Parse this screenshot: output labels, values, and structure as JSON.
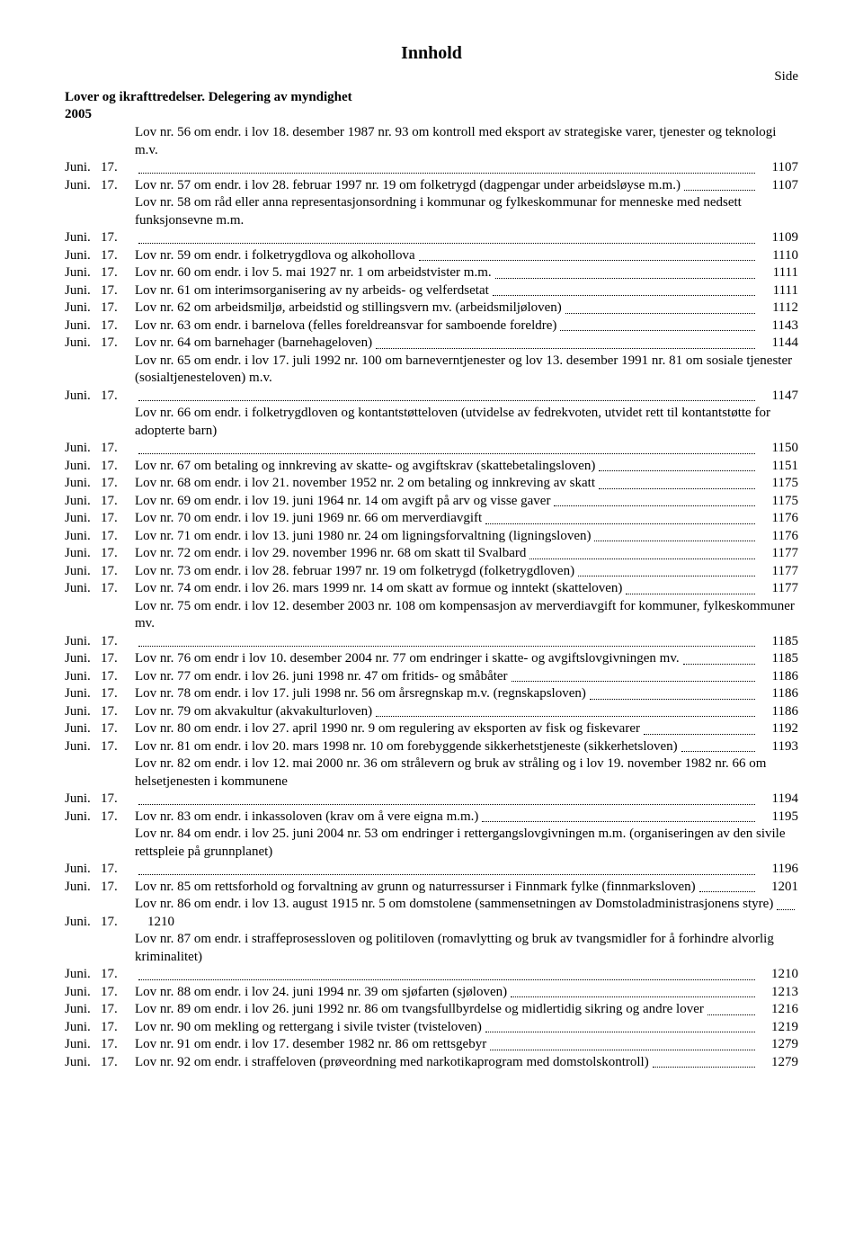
{
  "title": "Innhold",
  "side_label": "Side",
  "section": "Lover og ikrafttredelser. Delegering av myndighet",
  "year": "2005",
  "entries": [
    {
      "month": "Juni.",
      "day": "17.",
      "text": "Lov nr. 56 om endr. i lov 18. desember 1987 nr. 93 om kontroll med eksport av strategiske varer, tjenester og teknologi m.v.",
      "page": "1107"
    },
    {
      "month": "Juni.",
      "day": "17.",
      "text": "Lov nr. 57 om endr. i lov 28. februar 1997 nr. 19 om folketrygd (dagpengar under arbeidsløyse m.m.)",
      "page": "1107"
    },
    {
      "month": "Juni.",
      "day": "17.",
      "text": "Lov nr. 58 om råd eller anna representasjonsordning i kommunar og fylkeskommunar for menneske med nedsett funksjonsevne m.m.",
      "page": "1109"
    },
    {
      "month": "Juni.",
      "day": "17.",
      "text": "Lov nr. 59 om endr. i folketrygdlova og alkohollova",
      "page": "1110"
    },
    {
      "month": "Juni.",
      "day": "17.",
      "text": "Lov nr. 60 om endr. i lov 5. mai 1927 nr. 1 om arbeidstvister m.m.",
      "page": "1111"
    },
    {
      "month": "Juni.",
      "day": "17.",
      "text": "Lov nr. 61 om interimsorganisering av ny arbeids- og velferdsetat",
      "page": "1111"
    },
    {
      "month": "Juni.",
      "day": "17.",
      "text": "Lov nr. 62 om arbeidsmiljø, arbeidstid og stillingsvern mv. (arbeidsmiljøloven)",
      "page": "1112"
    },
    {
      "month": "Juni.",
      "day": "17.",
      "text": "Lov nr. 63 om endr. i barnelova (felles foreldreansvar for samboende foreldre)",
      "page": "1143"
    },
    {
      "month": "Juni.",
      "day": "17.",
      "text": "Lov nr. 64 om barnehager (barnehageloven)",
      "page": "1144"
    },
    {
      "month": "Juni.",
      "day": "17.",
      "text": "Lov nr. 65 om endr. i lov 17. juli 1992 nr. 100 om barneverntjenester og lov 13. desember 1991 nr. 81 om sosiale tjenester (sosialtjenesteloven) m.v.",
      "page": "1147"
    },
    {
      "month": "Juni.",
      "day": "17.",
      "text": "Lov nr. 66 om endr. i folketrygdloven og kontantstøtteloven (utvidelse av fedrekvoten, utvidet rett til kontantstøtte for adopterte barn)",
      "page": "1150"
    },
    {
      "month": "Juni.",
      "day": "17.",
      "text": "Lov nr. 67 om betaling og innkreving av skatte- og avgiftskrav (skattebetalingsloven)",
      "page": "1151"
    },
    {
      "month": "Juni.",
      "day": "17.",
      "text": "Lov nr. 68 om endr. i lov 21. november 1952 nr. 2 om betaling og innkreving av skatt",
      "page": "1175"
    },
    {
      "month": "Juni.",
      "day": "17.",
      "text": "Lov nr. 69 om endr. i lov 19. juni 1964 nr. 14 om avgift på arv og visse gaver",
      "page": "1175"
    },
    {
      "month": "Juni.",
      "day": "17.",
      "text": "Lov nr. 70 om endr. i lov 19. juni 1969 nr. 66 om merverdiavgift",
      "page": "1176"
    },
    {
      "month": "Juni.",
      "day": "17.",
      "text": "Lov nr. 71 om endr. i lov 13. juni 1980 nr. 24 om ligningsforvaltning (ligningsloven)",
      "page": "1176"
    },
    {
      "month": "Juni.",
      "day": "17.",
      "text": "Lov nr. 72 om endr. i lov 29. november 1996 nr. 68 om skatt til Svalbard",
      "page": "1177"
    },
    {
      "month": "Juni.",
      "day": "17.",
      "text": "Lov nr. 73 om endr. i lov 28. februar 1997 nr. 19 om folketrygd (folketrygdloven)",
      "page": "1177"
    },
    {
      "month": "Juni.",
      "day": "17.",
      "text": "Lov nr. 74 om endr. i lov 26. mars 1999 nr. 14 om skatt av formue og inntekt (skatteloven)",
      "page": "1177"
    },
    {
      "month": "Juni.",
      "day": "17.",
      "text": "Lov nr. 75 om endr. i lov 12. desember 2003 nr. 108 om kompensasjon av merverdiavgift for kommuner, fylkeskommuner mv.",
      "page": "1185"
    },
    {
      "month": "Juni.",
      "day": "17.",
      "text": "Lov nr. 76 om endr i lov 10. desember 2004 nr. 77 om endringer i skatte- og avgiftslovgivningen mv.",
      "page": "1185"
    },
    {
      "month": "Juni.",
      "day": "17.",
      "text": "Lov nr. 77 om endr. i lov 26. juni 1998 nr. 47 om fritids- og småbåter",
      "page": "1186"
    },
    {
      "month": "Juni.",
      "day": "17.",
      "text": "Lov nr. 78 om endr. i lov 17. juli 1998 nr. 56 om årsregnskap m.v. (regnskapsloven)",
      "page": "1186"
    },
    {
      "month": "Juni.",
      "day": "17.",
      "text": "Lov nr. 79 om akvakultur (akvakulturloven)",
      "page": "1186"
    },
    {
      "month": "Juni.",
      "day": "17.",
      "text": "Lov nr. 80 om endr. i lov 27. april 1990 nr. 9 om regulering av eksporten av fisk og fiskevarer",
      "page": "1192"
    },
    {
      "month": "Juni.",
      "day": "17.",
      "text": "Lov nr. 81 om endr. i lov 20. mars 1998 nr. 10 om forebyggende sikkerhetstjeneste (sikkerhetsloven)",
      "page": "1193"
    },
    {
      "month": "Juni.",
      "day": "17.",
      "text": "Lov nr. 82 om endr. i lov 12. mai 2000 nr. 36 om strålevern og bruk av stråling og i lov 19. november 1982 nr. 66 om helsetjenesten i kommunene",
      "page": "1194"
    },
    {
      "month": "Juni.",
      "day": "17.",
      "text": "Lov nr. 83 om endr. i inkassoloven (krav om å vere eigna m.m.)",
      "page": "1195"
    },
    {
      "month": "Juni.",
      "day": "17.",
      "text": "Lov nr. 84 om endr. i lov 25. juni 2004 nr. 53 om endringer i rettergangslovgivningen m.m. (organiseringen av den sivile rettspleie på grunnplanet)",
      "page": "1196"
    },
    {
      "month": "Juni.",
      "day": "17.",
      "text": "Lov nr. 85 om rettsforhold og forvaltning av grunn og naturressurser i Finnmark fylke (finnmarksloven)",
      "page": "1201"
    },
    {
      "month": "Juni.",
      "day": "17.",
      "text": "Lov nr. 86 om endr. i lov 13. august 1915 nr. 5 om domstolene (sammensetningen av Domstoladministrasjonens styre)",
      "page": "1210"
    },
    {
      "month": "Juni.",
      "day": "17.",
      "text": "Lov nr. 87 om endr. i straffeprosessloven og politiloven (romavlytting og bruk av tvangsmidler for å forhindre alvorlig kriminalitet)",
      "page": "1210"
    },
    {
      "month": "Juni.",
      "day": "17.",
      "text": "Lov nr. 88 om endr. i lov 24. juni 1994 nr. 39 om sjøfarten (sjøloven)",
      "page": "1213"
    },
    {
      "month": "Juni.",
      "day": "17.",
      "text": "Lov nr. 89 om endr. i lov 26. juni 1992 nr. 86 om tvangsfullbyrdelse og midlertidig sikring og andre lover",
      "page": "1216"
    },
    {
      "month": "Juni.",
      "day": "17.",
      "text": "Lov nr. 90 om mekling og rettergang i sivile tvister (tvisteloven)",
      "page": "1219"
    },
    {
      "month": "Juni.",
      "day": "17.",
      "text": "Lov nr. 91 om endr. i lov 17. desember 1982 nr. 86 om rettsgebyr",
      "page": "1279"
    },
    {
      "month": "Juni.",
      "day": "17.",
      "text": "Lov nr. 92 om endr. i straffeloven (prøveordning med narkotikaprogram med domstolskontroll)",
      "page": "1279"
    }
  ]
}
